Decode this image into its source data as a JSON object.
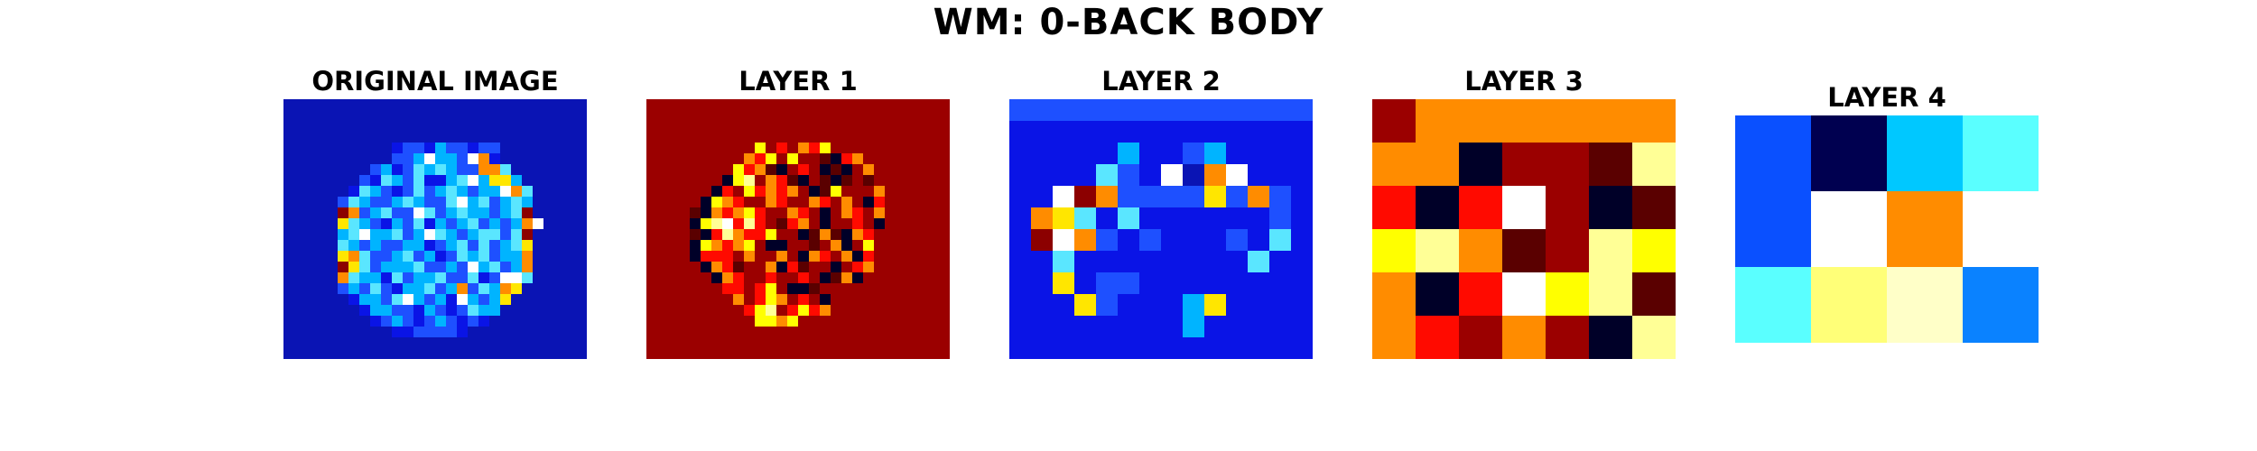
{
  "title": "WM: 0-BACK BODY",
  "panels": [
    {
      "title": "ORIGINAL IMAGE",
      "colormap": "jet-dark",
      "background": "#0a14b4",
      "cols": 28,
      "rows": 24,
      "cells": [
        "0000000000000000000000000000",
        "0000000000000000000000000000",
        "0000000000000000000000000000",
        "0000000000000000000000000000",
        "0000000000122132212200000000",
        "0000000000223533256100000000",
        "0000000023124343226640000000",
        "0000000214324113453773000000",
        "0000001432124234323356400000",
        "0000024322343224534234300000",
        "0000086234225423433234800000",
        "0000074321324132342323650000",
        "0000034533423543234424800000",
        "0000043232233123424234700000",
        "0000076422342312434233600000",
        "0000087423334223253423600000",
        "0000064331423342241255400000",
        "0000023242133423624367000000",
        "0000001332453231532370000000",
        "0000000133221321243300000000",
        "0000000012321232121000000000",
        "0000000000112222100000000000",
        "0000000000000000000000000000",
        "0000000000000000000000000000"
      ]
    },
    {
      "title": "LAYER 1",
      "colormap": "hot",
      "background": "#9b0000",
      "cols": 28,
      "rows": 24,
      "cells": [
        "3333333333333333333333333333",
        "3333333333333333333333333333",
        "3333333333333333333333333333",
        "3333333333333333333333333333",
        "3333333333635245623333333333",
        "3333333334562632105433333333",
        "3333333365410352010243333333",
        "3333333067345102101313333333",
        "3333330536545430163234333333",
        "3333306452345234524305333333",
        "3333104546533452024534333333",
        "3333067857521542033520333333",
        "3333105745562301410453333333",
        "3333064546300321340263333333",
        "3333055534334204524053333333",
        "3333304512240513303543333333",
        "3333330452353252014033333333",
        "3333333553562001333333333333",
        "3333333342564353033333333333",
        "3333333335673565433333333333",
        "3333333333664633333333333333",
        "3333333333333333333333333333",
        "3333333333333333333333333333",
        "3333333333333333333333333333"
      ]
    },
    {
      "title": "LAYER 2",
      "colormap": "jet-dark",
      "background": "#0a14e6",
      "cols": 14,
      "rows": 12,
      "cells": [
        "22222222222222",
        "11111111111111",
        "11111311231111",
        "11114215065111",
        "11586222272621",
        "16741411111121",
        "18562121112141",
        "11411111111411",
        "11712211111111",
        "11172111371111",
        "11111111311111",
        "11111111111111"
      ]
    },
    {
      "title": "LAYER 3",
      "colormap": "hot",
      "background": "#ff8c00",
      "cols": 7,
      "rows": 6,
      "cells": [
        "3444444",
        "4402317",
        "5058301",
        "6741376",
        "4058671",
        "4524207"
      ]
    },
    {
      "title": "LAYER 4",
      "colormap": "mixed",
      "background": "#ffffff",
      "cols": 4,
      "rows": 3,
      "cells": [
        "abcd",
        "aeFe",
        "gHIj"
      ]
    }
  ],
  "palettes": {
    "jet-dark": {
      "0": "#0a14b4",
      "1": "#0a14e6",
      "2": "#1e50ff",
      "3": "#00b4ff",
      "4": "#5ae6ff",
      "5": "#ffffff",
      "6": "#ff8c00",
      "7": "#ffe600",
      "8": "#8c0000"
    },
    "hot": {
      "0": "#000028",
      "1": "#5a0000",
      "2": "#9b0000",
      "3": "#9b0000",
      "4": "#ff8c00",
      "5": "#ff0a00",
      "6": "#ffff00",
      "7": "#ffff96",
      "8": "#ffffff"
    },
    "mixed": {
      "a": "#0a50ff",
      "b": "#000050",
      "c": "#00c8ff",
      "d": "#5affff",
      "e": "#ffffff",
      "F": "#ff8c00",
      "g": "#5affff",
      "H": "#ffff78",
      "I": "#ffffc8",
      "j": "#0a82ff"
    }
  }
}
